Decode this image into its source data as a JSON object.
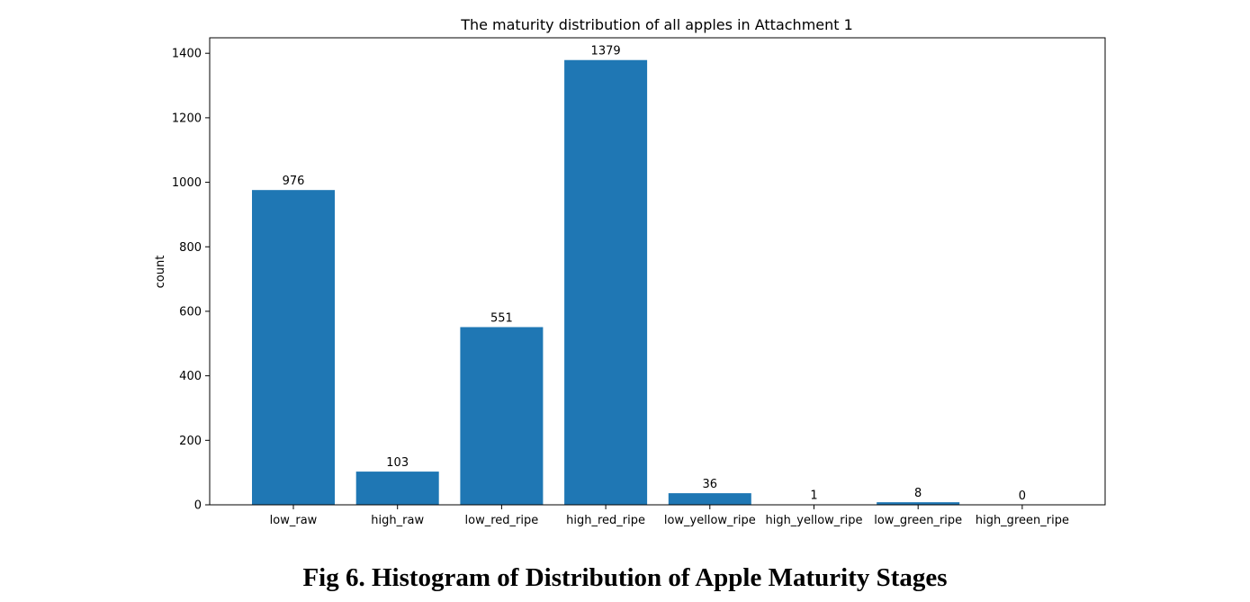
{
  "chart_data": {
    "type": "bar",
    "title": "The maturity distribution of all apples in Attachment 1",
    "xlabel": "",
    "ylabel": "count",
    "categories": [
      "low_raw",
      "high_raw",
      "low_red_ripe",
      "high_red_ripe",
      "low_yellow_ripe",
      "high_yellow_ripe",
      "low_green_ripe",
      "high_green_ripe"
    ],
    "values": [
      976,
      103,
      551,
      1379,
      36,
      1,
      8,
      0
    ],
    "data_labels": [
      "976",
      "103",
      "551",
      "1379",
      "36",
      "1",
      "8",
      "0"
    ],
    "yticks": [
      0,
      200,
      400,
      600,
      800,
      1000,
      1200,
      1400
    ],
    "ylim": [
      0,
      1448
    ],
    "grid": false,
    "legend": "none",
    "bar_color": "#1f77b4"
  },
  "caption": {
    "text": "Fig 6.  Histogram of Distribution of Apple Maturity Stages"
  }
}
